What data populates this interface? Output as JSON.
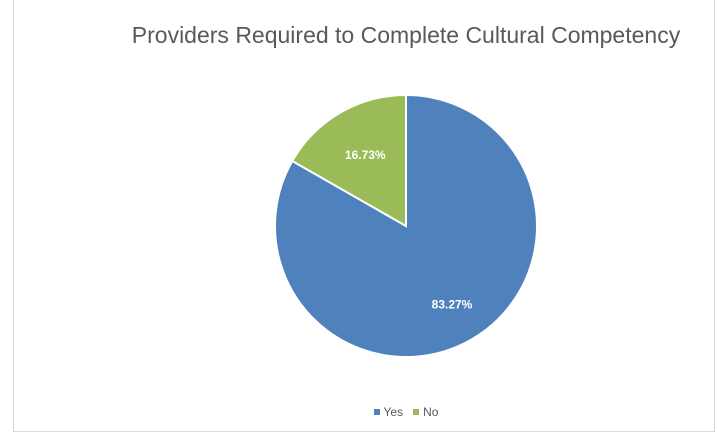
{
  "chart_data": {
    "type": "pie",
    "title": "Providers Required to Complete Cultural Competency",
    "slices": [
      {
        "name": "Yes",
        "value": 83.27,
        "label": "83.27%",
        "color": "#4f81bd"
      },
      {
        "name": "No",
        "value": 16.73,
        "label": "16.73%",
        "color": "#9bbb59"
      }
    ],
    "legend_position": "bottom",
    "start_angle": "12 o'clock, clockwise"
  }
}
